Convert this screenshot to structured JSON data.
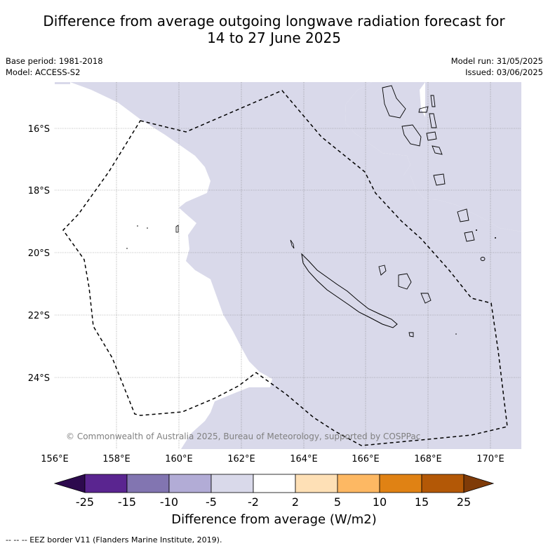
{
  "title": {
    "line1": "Difference from average outgoing longwave radiation forecast for",
    "line2": "14 to 27 June 2025"
  },
  "meta": {
    "base_period": "Base period: 1981-2018",
    "model": "Model: ACCESS-S2",
    "model_run": "Model run: 31/05/2025",
    "issued": "Issued: 03/06/2025"
  },
  "map": {
    "lon_range": [
      156,
      171
    ],
    "lat_range": [
      -26.1,
      -14.5
    ],
    "lon_ticks": [
      "156°E",
      "158°E",
      "160°E",
      "162°E",
      "164°E",
      "166°E",
      "168°E",
      "170°E"
    ],
    "lat_ticks": [
      "16°S",
      "18°S",
      "20°S",
      "22°S",
      "24°S"
    ],
    "shaded_category": "-5 to -2",
    "eez_border": "dashed",
    "credit": "© Commonwealth of Australia 2025, Bureau of Meteorology, supported by COSPPac"
  },
  "colorbar": {
    "ticks": [
      "-25",
      "-15",
      "-10",
      "-5",
      "-2",
      "2",
      "5",
      "10",
      "15",
      "25"
    ],
    "colors": [
      "#2d0a4e",
      "#5a2590",
      "#8275b1",
      "#b2acd6",
      "#d9d9ea",
      "#ffffff",
      "#fee0b6",
      "#fdb863",
      "#e08214",
      "#b35806",
      "#7f3b08"
    ],
    "title": "Difference from average (W/m2)"
  },
  "footnote": "--  --  -- EEZ border V11 (Flanders Marine Institute, 2019)."
}
